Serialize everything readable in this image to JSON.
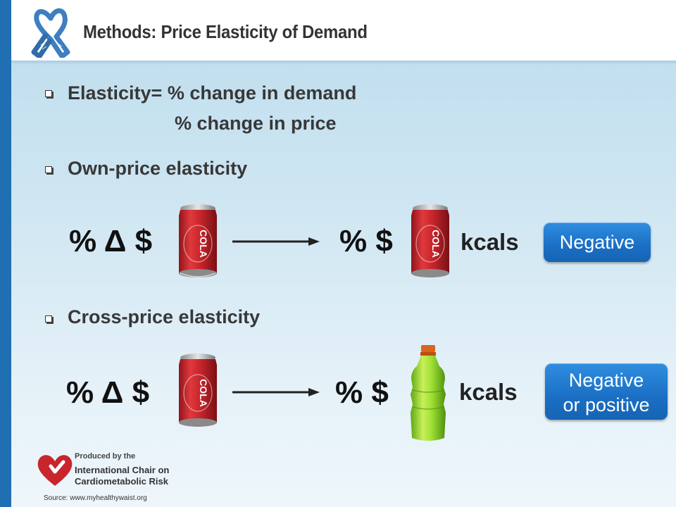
{
  "slide": {
    "title": "Methods: Price Elasticity of Demand",
    "bullets": {
      "elasticity": "Elasticity= % change in demand",
      "elasticity_denominator": "% change in price",
      "own_price": "Own-price elasticity",
      "cross_price": "Cross-price elasticity"
    },
    "own_row": {
      "left_expr": "% Δ $",
      "right_expr": "% $",
      "unit": "kcals",
      "badge": "Negative"
    },
    "cross_row": {
      "left_expr": "% Δ $",
      "right_expr": "% $",
      "unit": "kcals",
      "badge_line1": "Negative",
      "badge_line2": "or positive"
    },
    "can_label": "COLA"
  },
  "footer": {
    "produced_by": "Produced by the",
    "org_line1": "International Chair on",
    "org_line2": "Cardiometabolic Risk",
    "source": "Source: www.myhealthywaist.org"
  },
  "colors": {
    "accent_bar": "#1f6fb2",
    "badge": "#1a6fc4",
    "can_red": "#c8262c",
    "bottle_green": "#8fd62a",
    "ribbon_blue": "#3d7fc1",
    "logo_red": "#c8262c"
  },
  "icons": [
    "awareness-ribbon-icon",
    "cola-can-icon",
    "sports-drink-bottle-icon",
    "heart-logo-icon",
    "arrow-right-icon"
  ]
}
